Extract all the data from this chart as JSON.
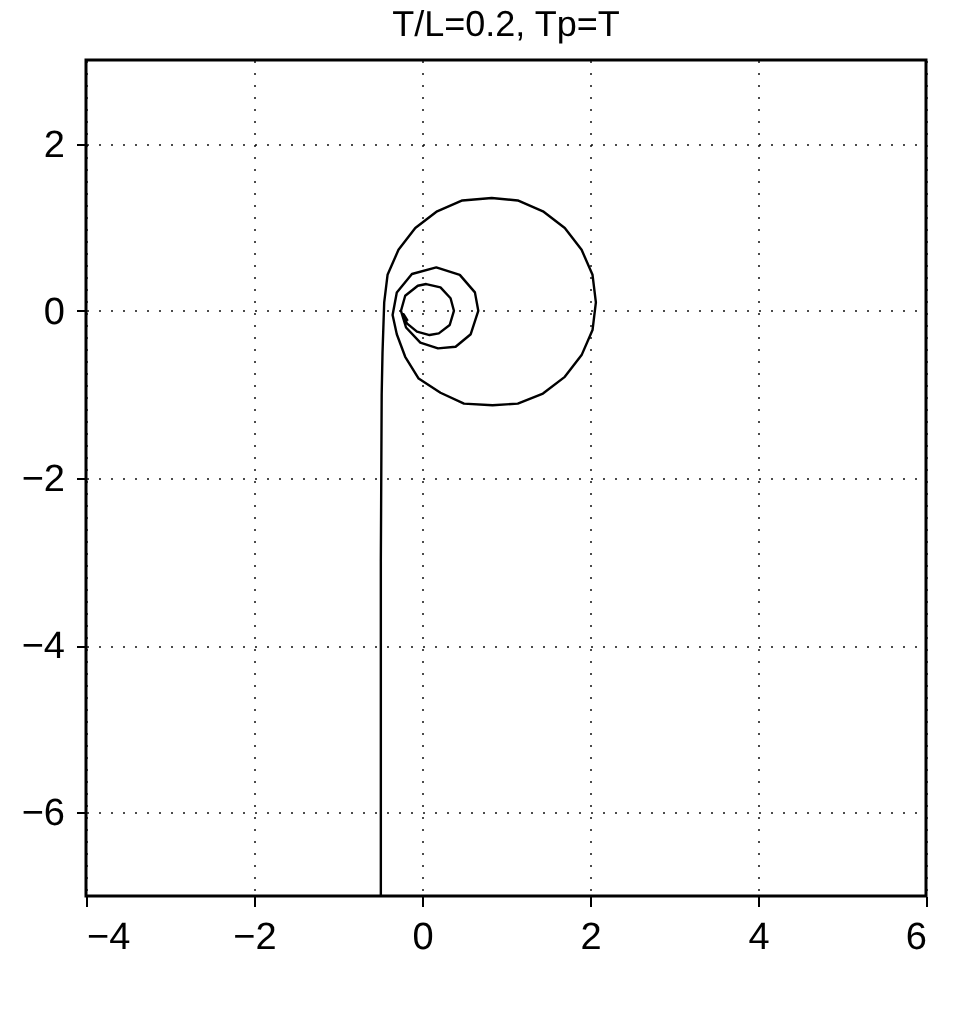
{
  "chart_data": {
    "type": "line",
    "title": "T/L=0.2, Tp=T",
    "xlim": [
      -4,
      6
    ],
    "xticks": [
      -4,
      -2,
      0,
      2,
      4,
      6
    ],
    "ylim": [
      -7,
      3
    ],
    "yticks": [
      -6,
      -4,
      -2,
      0,
      2
    ],
    "grid": true,
    "marker": "none",
    "line_style": "solid",
    "series": [
      {
        "color": "#000000",
        "x": [
          -0.49,
          -0.49,
          -0.48,
          -0.47,
          -0.46,
          -0.45,
          -0.41,
          -0.28,
          -0.08,
          0.18,
          0.48,
          0.83,
          1.14,
          1.44,
          1.7,
          1.9,
          2.03,
          2.07,
          2.03,
          1.9,
          1.7,
          1.44,
          1.14,
          0.84,
          0.5,
          0.22,
          -0.04,
          -0.2,
          -0.3,
          -0.35,
          -0.3,
          -0.12,
          0.17,
          0.45,
          0.63,
          0.67,
          0.58,
          0.4,
          0.19,
          -0.02,
          -0.19,
          -0.25,
          -0.2,
          -0.05,
          0.05,
          0.22,
          0.34,
          0.38,
          0.33,
          0.2,
          0.09,
          -0.06,
          -0.18,
          -0.22,
          -0.17
        ],
        "values": [
          -7,
          -3,
          -1,
          -0.5,
          -0.2,
          0.1,
          0.43,
          0.73,
          0.99,
          1.19,
          1.32,
          1.35,
          1.32,
          1.19,
          0.99,
          0.73,
          0.43,
          0.1,
          -0.23,
          -0.53,
          -0.79,
          -0.99,
          -1.11,
          -1.13,
          -1.11,
          -0.98,
          -0.81,
          -0.55,
          -0.28,
          -0.05,
          0.22,
          0.44,
          0.52,
          0.43,
          0.22,
          0,
          -0.28,
          -0.43,
          -0.45,
          -0.38,
          -0.2,
          0,
          0.18,
          0.3,
          0.32,
          0.28,
          0.15,
          0,
          -0.17,
          -0.27,
          -0.29,
          -0.25,
          -0.15,
          -0.04,
          -0.12
        ]
      }
    ]
  }
}
